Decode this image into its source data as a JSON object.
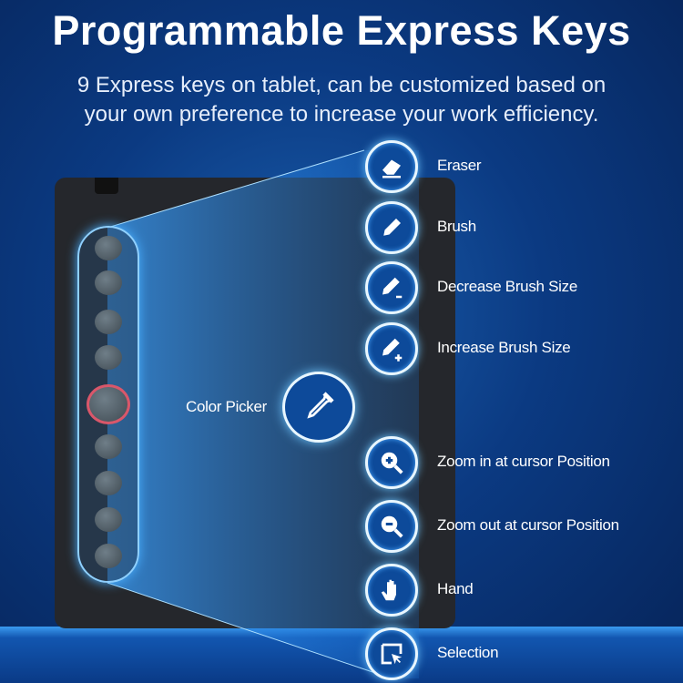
{
  "title": "Programmable Express Keys",
  "subtitle_lines": [
    "9 Express keys on tablet, can be customized based on",
    "your own preference to increase your work efficiency."
  ],
  "center_key": {
    "label": "Color Picker",
    "icon": "eyedropper-icon"
  },
  "keys": [
    {
      "label": "Eraser",
      "icon": "eraser-icon"
    },
    {
      "label": "Brush",
      "icon": "pencil-icon"
    },
    {
      "label": "Decrease Brush Size",
      "icon": "pencil-minus-icon"
    },
    {
      "label": "Increase Brush Size",
      "icon": "pencil-plus-icon"
    },
    {
      "label": "Zoom in at cursor Position",
      "icon": "zoom-in-icon"
    },
    {
      "label": "Zoom out at cursor Position",
      "icon": "zoom-out-icon"
    },
    {
      "label": "Hand",
      "icon": "hand-icon"
    },
    {
      "label": "Selection",
      "icon": "selection-icon"
    }
  ],
  "colors": {
    "highlight_ring": "#d9576a",
    "icon_fill": "#0d4a9a"
  }
}
